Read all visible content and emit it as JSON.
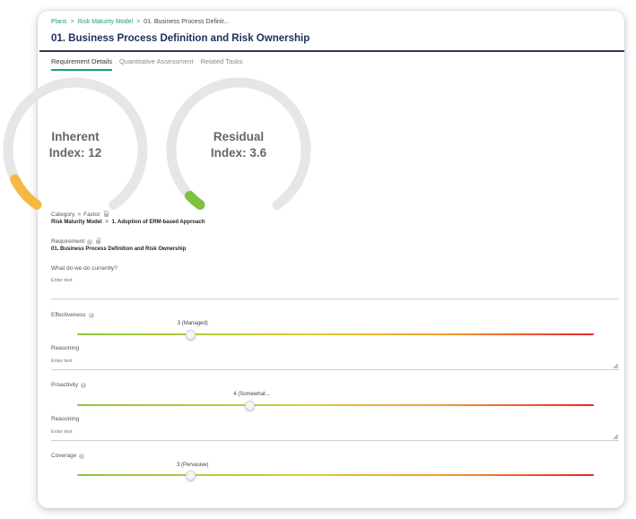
{
  "breadcrumb": {
    "root": "Plans",
    "parent": "Risk Maturity Model",
    "current": "01. Business Process Definit…",
    "separator": ">"
  },
  "page_title": "01. Business Process Definition and Risk Ownership",
  "tabs": [
    {
      "label": "Requirement Details",
      "active": true
    },
    {
      "label": "Quantitative Assessment",
      "active": false
    },
    {
      "label": "Related Tasks",
      "active": false
    }
  ],
  "gauges": {
    "inherent": {
      "line1": "Inherent",
      "line2": "Index: 12",
      "fill_fraction": 0.1,
      "color": "#f5b942"
    },
    "residual": {
      "line1": "Residual",
      "line2": "Index: 3.6",
      "fill_fraction": 0.04,
      "color": "#7cc142"
    }
  },
  "category": {
    "label": "Category",
    "separator": ">",
    "label2": "Factor",
    "value_parent": "Risk Maturity Model",
    "value_child": "1. Adoption of ERM-based Approach"
  },
  "requirement": {
    "label": "Requirement",
    "value": "01. Business Process Definition and Risk Ownership"
  },
  "current_practice": {
    "label": "What do we do currently?",
    "placeholder": "Enter text"
  },
  "effectiveness": {
    "label": "Effectiveness",
    "value_text": "3 (Managed)",
    "position_fraction": 0.22
  },
  "reasoning_1": {
    "label": "Reasoning",
    "placeholder": "Enter text"
  },
  "proactivity": {
    "label": "Proactivity",
    "value_text": "4 (Somewhat…",
    "position_fraction": 0.335
  },
  "reasoning_2": {
    "label": "Reasoning",
    "placeholder": "Enter text"
  },
  "coverage": {
    "label": "Coverage",
    "value_text": "3 (Pervasive)",
    "position_fraction": 0.22
  },
  "colors": {
    "accent": "#1a9e80",
    "title": "#1c2e5c",
    "gauge_track": "#e6e6e6",
    "slider_start": "#8dc63f",
    "slider_end": "#e3262e"
  }
}
